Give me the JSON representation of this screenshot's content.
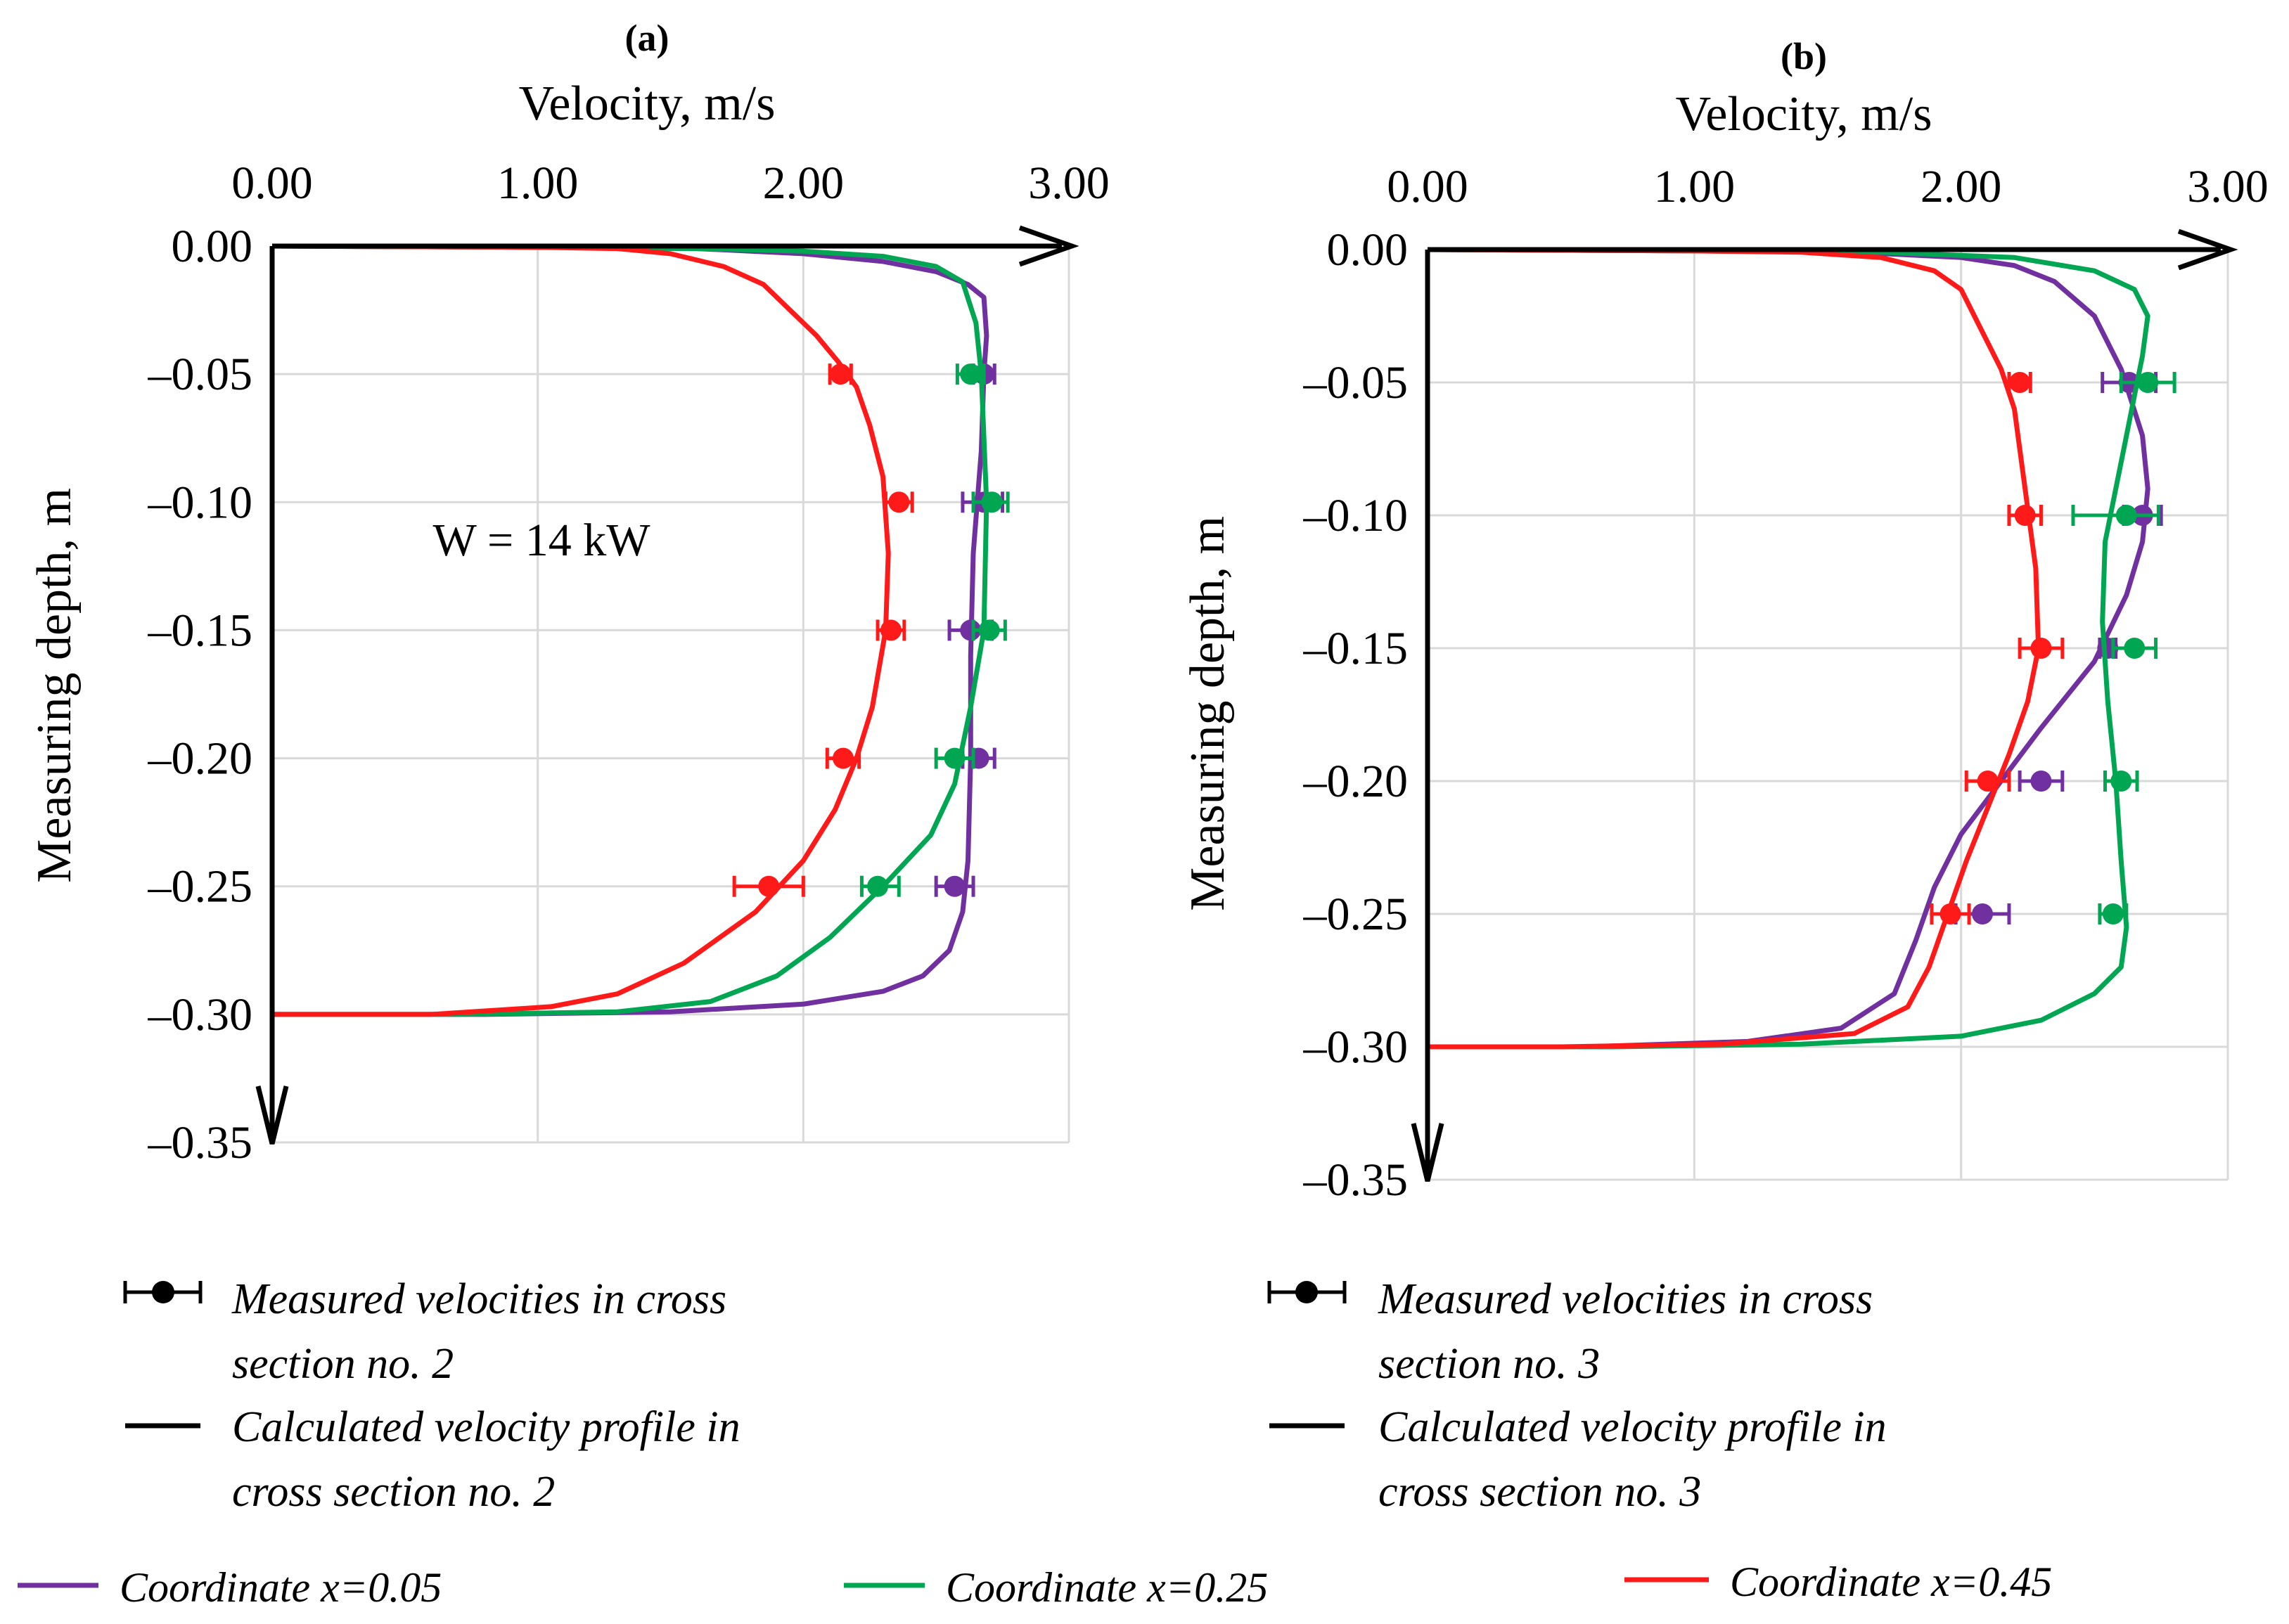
{
  "colors": {
    "x005": "#7030A0",
    "x025": "#00A651",
    "x045": "#FF1A1A",
    "axis": "#000000",
    "grid": "#D9D9D9"
  },
  "legend_panel": {
    "a": {
      "measured": [
        "Measured velocities in cross",
        "section no. 2"
      ],
      "calculated": [
        "Calculated velocity profile in",
        "cross section no. 2"
      ]
    },
    "b": {
      "measured": [
        "Measured velocities in cross",
        "section no. 3"
      ],
      "calculated": [
        "Calculated velocity profile in",
        "cross section no. 3"
      ]
    }
  },
  "legend_series": [
    {
      "label": "Coordinate x=0.05",
      "color": "#7030A0"
    },
    {
      "label": "Coordinate x=0.25",
      "color": "#00A651"
    },
    {
      "label": "Coordinate x=0.45",
      "color": "#FF1A1A"
    }
  ],
  "chart_data": [
    {
      "id": "a",
      "type": "line",
      "panel_label": "(a)",
      "title": "Velocity, m/s",
      "xlabel": "Velocity, m/s",
      "ylabel": "Measuring depth, m",
      "xlim": [
        0,
        3
      ],
      "ylim": [
        -0.35,
        0
      ],
      "xticks": [
        0,
        1,
        2,
        3
      ],
      "xtick_labels": [
        "0.00",
        "1.00",
        "2.00",
        "3.00"
      ],
      "yticks": [
        0,
        -0.05,
        -0.1,
        -0.15,
        -0.2,
        -0.25,
        -0.3,
        -0.35
      ],
      "ytick_labels": [
        "0.00",
        "–0.05",
        "–0.10",
        "–0.15",
        "–0.20",
        "–0.25",
        "–0.30",
        "–0.35"
      ],
      "grid": true,
      "annotation": "W = 14 kW",
      "series": [
        {
          "name": "Coordinate x=0.05",
          "color_key": "x005",
          "line": [
            [
              0,
              0
            ],
            [
              1.0,
              -0.0005
            ],
            [
              1.6,
              -0.001
            ],
            [
              2.0,
              -0.003
            ],
            [
              2.3,
              -0.006
            ],
            [
              2.5,
              -0.01
            ],
            [
              2.62,
              -0.015
            ],
            [
              2.68,
              -0.02
            ],
            [
              2.69,
              -0.035
            ],
            [
              2.68,
              -0.05
            ],
            [
              2.67,
              -0.08
            ],
            [
              2.64,
              -0.12
            ],
            [
              2.63,
              -0.16
            ],
            [
              2.63,
              -0.2
            ],
            [
              2.62,
              -0.24
            ],
            [
              2.6,
              -0.26
            ],
            [
              2.55,
              -0.275
            ],
            [
              2.45,
              -0.285
            ],
            [
              2.3,
              -0.291
            ],
            [
              2.0,
              -0.296
            ],
            [
              1.5,
              -0.299
            ],
            [
              0.8,
              -0.3
            ],
            [
              0,
              -0.3
            ]
          ],
          "points": [
            {
              "depth": -0.05,
              "v": 2.68,
              "lo": 2.64,
              "hi": 2.72
            },
            {
              "depth": -0.1,
              "v": 2.68,
              "lo": 2.6,
              "hi": 2.75
            },
            {
              "depth": -0.15,
              "v": 2.63,
              "lo": 2.55,
              "hi": 2.71
            },
            {
              "depth": -0.2,
              "v": 2.66,
              "lo": 2.6,
              "hi": 2.72
            },
            {
              "depth": -0.25,
              "v": 2.57,
              "lo": 2.5,
              "hi": 2.64
            }
          ]
        },
        {
          "name": "Coordinate x=0.25",
          "color_key": "x025",
          "line": [
            [
              0,
              0
            ],
            [
              1.0,
              -0.0005
            ],
            [
              1.6,
              -0.001
            ],
            [
              2.0,
              -0.002
            ],
            [
              2.3,
              -0.004
            ],
            [
              2.5,
              -0.008
            ],
            [
              2.6,
              -0.014
            ],
            [
              2.65,
              -0.03
            ],
            [
              2.67,
              -0.05
            ],
            [
              2.69,
              -0.1
            ],
            [
              2.68,
              -0.15
            ],
            [
              2.63,
              -0.18
            ],
            [
              2.57,
              -0.21
            ],
            [
              2.48,
              -0.23
            ],
            [
              2.3,
              -0.25
            ],
            [
              2.1,
              -0.27
            ],
            [
              1.9,
              -0.285
            ],
            [
              1.65,
              -0.295
            ],
            [
              1.3,
              -0.299
            ],
            [
              0.7,
              -0.3
            ],
            [
              0,
              -0.3
            ]
          ],
          "points": [
            {
              "depth": -0.05,
              "v": 2.63,
              "lo": 2.58,
              "hi": 2.68
            },
            {
              "depth": -0.1,
              "v": 2.71,
              "lo": 2.64,
              "hi": 2.77
            },
            {
              "depth": -0.15,
              "v": 2.7,
              "lo": 2.64,
              "hi": 2.76
            },
            {
              "depth": -0.2,
              "v": 2.57,
              "lo": 2.5,
              "hi": 2.64
            },
            {
              "depth": -0.25,
              "v": 2.28,
              "lo": 2.22,
              "hi": 2.36
            }
          ]
        },
        {
          "name": "Coordinate x=0.45",
          "color_key": "x045",
          "line": [
            [
              0,
              0
            ],
            [
              1.0,
              -0.0005
            ],
            [
              1.3,
              -0.001
            ],
            [
              1.5,
              -0.003
            ],
            [
              1.7,
              -0.008
            ],
            [
              1.85,
              -0.015
            ],
            [
              1.95,
              -0.025
            ],
            [
              2.05,
              -0.035
            ],
            [
              2.13,
              -0.045
            ],
            [
              2.2,
              -0.055
            ],
            [
              2.25,
              -0.07
            ],
            [
              2.3,
              -0.09
            ],
            [
              2.32,
              -0.12
            ],
            [
              2.31,
              -0.15
            ],
            [
              2.26,
              -0.18
            ],
            [
              2.2,
              -0.2
            ],
            [
              2.12,
              -0.22
            ],
            [
              2.0,
              -0.24
            ],
            [
              1.82,
              -0.26
            ],
            [
              1.55,
              -0.28
            ],
            [
              1.3,
              -0.292
            ],
            [
              1.05,
              -0.297
            ],
            [
              0.6,
              -0.3
            ],
            [
              0,
              -0.3
            ]
          ],
          "points": [
            {
              "depth": -0.05,
              "v": 2.14,
              "lo": 2.1,
              "hi": 2.18
            },
            {
              "depth": -0.1,
              "v": 2.36,
              "lo": 2.31,
              "hi": 2.41
            },
            {
              "depth": -0.15,
              "v": 2.33,
              "lo": 2.28,
              "hi": 2.38
            },
            {
              "depth": -0.2,
              "v": 2.15,
              "lo": 2.09,
              "hi": 2.21
            },
            {
              "depth": -0.25,
              "v": 1.87,
              "lo": 1.74,
              "hi": 2.0
            }
          ]
        }
      ]
    },
    {
      "id": "b",
      "type": "line",
      "panel_label": "(b)",
      "title": "Velocity, m/s",
      "xlabel": "Velocity, m/s",
      "ylabel": "Measuring depth, m",
      "xlim": [
        0,
        3
      ],
      "ylim": [
        -0.35,
        0
      ],
      "xticks": [
        0,
        1,
        2,
        3
      ],
      "xtick_labels": [
        "0.00",
        "1.00",
        "2.00",
        "3.00"
      ],
      "yticks": [
        0,
        -0.05,
        -0.1,
        -0.15,
        -0.2,
        -0.25,
        -0.3,
        -0.35
      ],
      "ytick_labels": [
        "0.00",
        "–0.05",
        "–0.10",
        "–0.15",
        "–0.20",
        "–0.25",
        "–0.30",
        "–0.35"
      ],
      "grid": true,
      "series": [
        {
          "name": "Coordinate x=0.05",
          "color_key": "x005",
          "line": [
            [
              0,
              0
            ],
            [
              1.0,
              -0.0005
            ],
            [
              1.6,
              -0.001
            ],
            [
              2.0,
              -0.003
            ],
            [
              2.2,
              -0.006
            ],
            [
              2.35,
              -0.012
            ],
            [
              2.5,
              -0.025
            ],
            [
              2.6,
              -0.045
            ],
            [
              2.68,
              -0.07
            ],
            [
              2.7,
              -0.09
            ],
            [
              2.68,
              -0.11
            ],
            [
              2.62,
              -0.13
            ],
            [
              2.5,
              -0.155
            ],
            [
              2.3,
              -0.18
            ],
            [
              2.15,
              -0.2
            ],
            [
              2.0,
              -0.22
            ],
            [
              1.9,
              -0.24
            ],
            [
              1.83,
              -0.26
            ],
            [
              1.75,
              -0.28
            ],
            [
              1.55,
              -0.293
            ],
            [
              1.2,
              -0.298
            ],
            [
              0.6,
              -0.3
            ],
            [
              0,
              -0.3
            ]
          ],
          "points": [
            {
              "depth": -0.05,
              "v": 2.63,
              "lo": 2.53,
              "hi": 2.73
            },
            {
              "depth": -0.1,
              "v": 2.68,
              "lo": 2.61,
              "hi": 2.75
            },
            {
              "depth": -0.15,
              "v": 2.55,
              "lo": 2.52,
              "hi": 2.58
            },
            {
              "depth": -0.2,
              "v": 2.3,
              "lo": 2.22,
              "hi": 2.38
            },
            {
              "depth": -0.25,
              "v": 2.08,
              "lo": 1.98,
              "hi": 2.18
            }
          ]
        },
        {
          "name": "Coordinate x=0.25",
          "color_key": "x025",
          "line": [
            [
              0,
              0
            ],
            [
              1.0,
              -0.0005
            ],
            [
              1.7,
              -0.001
            ],
            [
              2.2,
              -0.003
            ],
            [
              2.5,
              -0.008
            ],
            [
              2.65,
              -0.015
            ],
            [
              2.7,
              -0.025
            ],
            [
              2.68,
              -0.04
            ],
            [
              2.65,
              -0.055
            ],
            [
              2.62,
              -0.07
            ],
            [
              2.58,
              -0.09
            ],
            [
              2.54,
              -0.11
            ],
            [
              2.53,
              -0.14
            ],
            [
              2.55,
              -0.17
            ],
            [
              2.58,
              -0.2
            ],
            [
              2.6,
              -0.23
            ],
            [
              2.62,
              -0.255
            ],
            [
              2.6,
              -0.27
            ],
            [
              2.5,
              -0.28
            ],
            [
              2.3,
              -0.29
            ],
            [
              2.0,
              -0.296
            ],
            [
              1.4,
              -0.299
            ],
            [
              0.7,
              -0.3
            ],
            [
              0,
              -0.3
            ]
          ],
          "points": [
            {
              "depth": -0.05,
              "v": 2.7,
              "lo": 2.6,
              "hi": 2.8
            },
            {
              "depth": -0.1,
              "v": 2.62,
              "lo": 2.42,
              "hi": 2.74
            },
            {
              "depth": -0.15,
              "v": 2.65,
              "lo": 2.57,
              "hi": 2.73
            },
            {
              "depth": -0.2,
              "v": 2.6,
              "lo": 2.54,
              "hi": 2.66
            },
            {
              "depth": -0.25,
              "v": 2.57,
              "lo": 2.52,
              "hi": 2.62
            }
          ]
        },
        {
          "name": "Coordinate x=0.45",
          "color_key": "x045",
          "line": [
            [
              0,
              0
            ],
            [
              1.0,
              -0.0005
            ],
            [
              1.4,
              -0.001
            ],
            [
              1.7,
              -0.003
            ],
            [
              1.9,
              -0.008
            ],
            [
              2.0,
              -0.015
            ],
            [
              2.05,
              -0.025
            ],
            [
              2.1,
              -0.035
            ],
            [
              2.15,
              -0.045
            ],
            [
              2.2,
              -0.06
            ],
            [
              2.24,
              -0.09
            ],
            [
              2.28,
              -0.12
            ],
            [
              2.29,
              -0.15
            ],
            [
              2.25,
              -0.17
            ],
            [
              2.18,
              -0.19
            ],
            [
              2.1,
              -0.21
            ],
            [
              2.02,
              -0.23
            ],
            [
              1.95,
              -0.25
            ],
            [
              1.88,
              -0.27
            ],
            [
              1.8,
              -0.285
            ],
            [
              1.6,
              -0.295
            ],
            [
              1.1,
              -0.299
            ],
            [
              0.5,
              -0.3
            ],
            [
              0,
              -0.3
            ]
          ],
          "points": [
            {
              "depth": -0.05,
              "v": 2.22,
              "lo": 2.18,
              "hi": 2.26
            },
            {
              "depth": -0.1,
              "v": 2.24,
              "lo": 2.18,
              "hi": 2.3
            },
            {
              "depth": -0.15,
              "v": 2.3,
              "lo": 2.22,
              "hi": 2.38
            },
            {
              "depth": -0.2,
              "v": 2.1,
              "lo": 2.02,
              "hi": 2.18
            },
            {
              "depth": -0.25,
              "v": 1.96,
              "lo": 1.89,
              "hi": 2.03
            }
          ]
        }
      ]
    }
  ]
}
